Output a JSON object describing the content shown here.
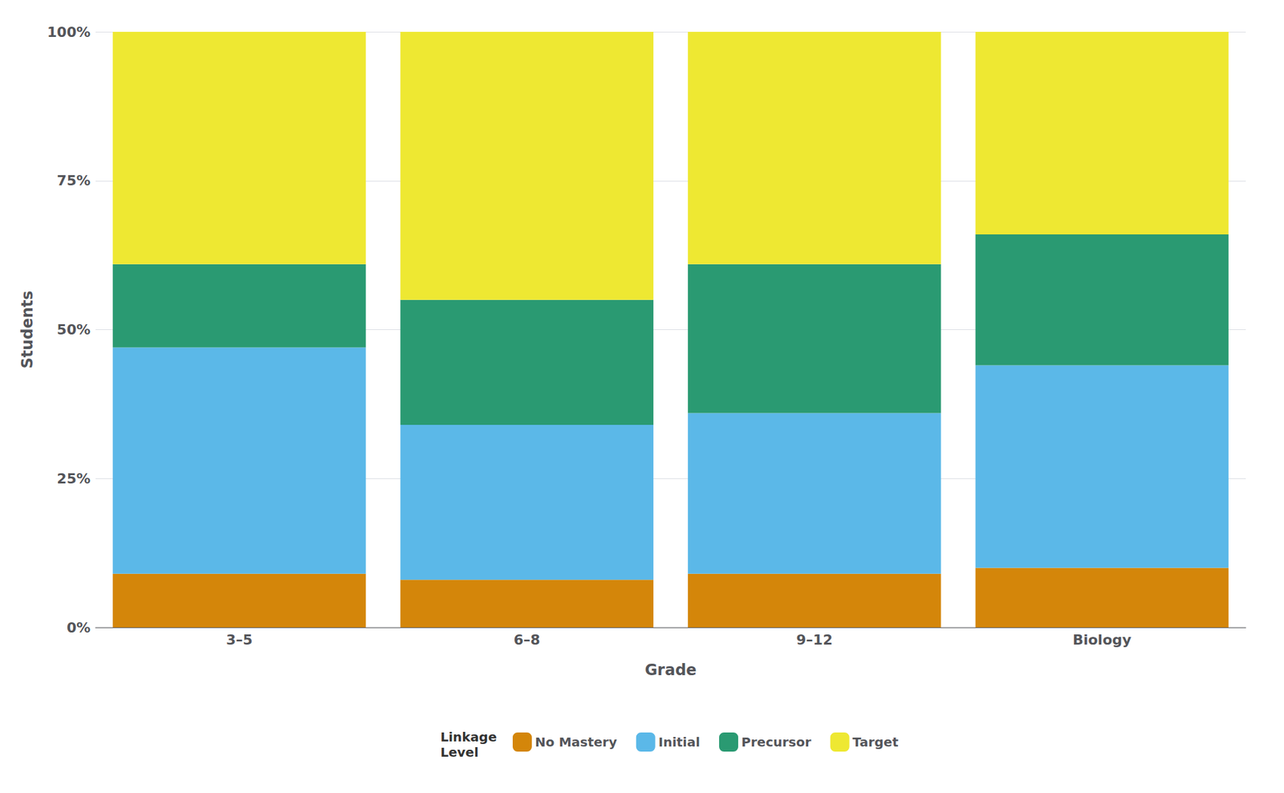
{
  "chart_data": {
    "type": "bar",
    "stacked": true,
    "categories": [
      "3–5",
      "6–8",
      "9–12",
      "Biology"
    ],
    "series": [
      {
        "name": "No Mastery",
        "color": "#D4860A",
        "values": [
          9,
          8,
          9,
          10
        ]
      },
      {
        "name": "Initial",
        "color": "#5BB8E8",
        "values": [
          38,
          26,
          27,
          34
        ]
      },
      {
        "name": "Precursor",
        "color": "#2A9A72",
        "values": [
          14,
          21,
          25,
          22
        ]
      },
      {
        "name": "Target",
        "color": "#EEE832",
        "values": [
          39,
          45,
          39,
          34
        ]
      }
    ],
    "xlabel": "Grade",
    "ylabel": "Students",
    "ylim": [
      0,
      100
    ],
    "yticks": [
      {
        "value": 0,
        "label": "0%"
      },
      {
        "value": 25,
        "label": "25%"
      },
      {
        "value": 50,
        "label": "50%"
      },
      {
        "value": 75,
        "label": "75%"
      },
      {
        "value": 100,
        "label": "100%"
      }
    ],
    "grid": true,
    "legend": "bottom",
    "legend_title": "Linkage\nLevel"
  }
}
